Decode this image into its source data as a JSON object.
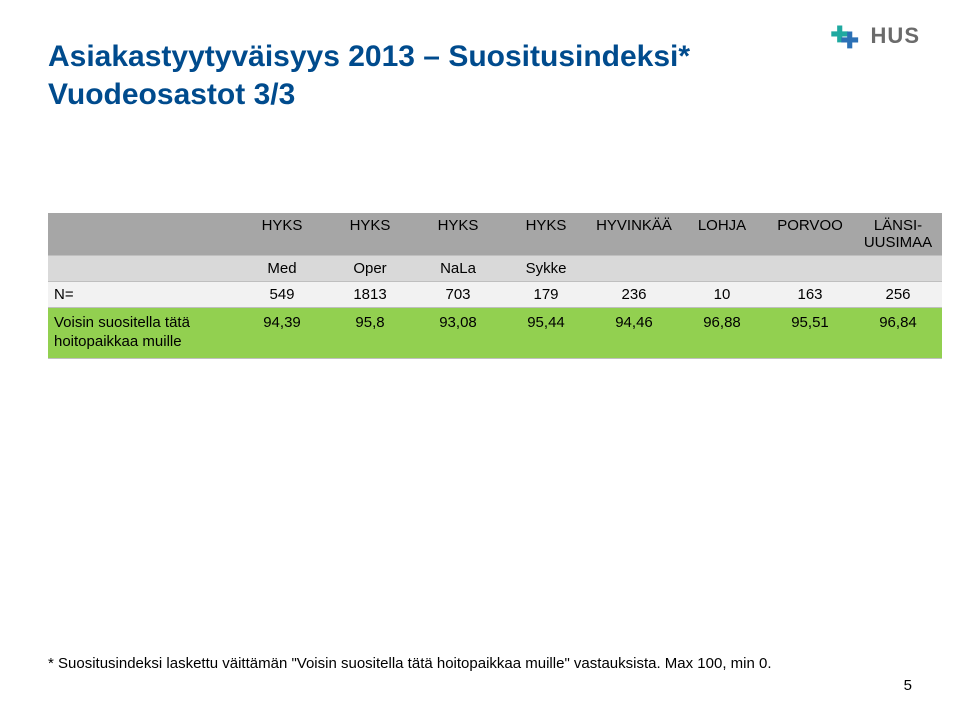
{
  "title": {
    "line1": "Asiakastyytyväisyys 2013 – Suositusindeksi*",
    "line2": "Vuodeosastot 3/3",
    "color": "#004b8d",
    "fontsize": 30
  },
  "logo": {
    "text": "HUS",
    "text_color": "#6b6b6b",
    "mark_color_1": "#1fa9a0",
    "mark_color_2": "#2b70b5"
  },
  "table": {
    "columns_main": [
      "HYKS",
      "HYKS",
      "HYKS",
      "HYKS",
      "HYVINKÄÄ",
      "LOHJA",
      "PORVOO",
      "LÄNSI-UUSIMAA"
    ],
    "columns_sub": [
      "Med",
      "Oper",
      "NaLa",
      "Sykke",
      "",
      "",
      "",
      ""
    ],
    "n_label": "N=",
    "n_values": [
      "549",
      "1813",
      "703",
      "179",
      "236",
      "10",
      "163",
      "256"
    ],
    "data_label": "Voisin suositella tätä hoitopaikkaa muille",
    "data_values": [
      "94,39",
      "95,8",
      "93,08",
      "95,44",
      "94,46",
      "96,88",
      "95,51",
      "96,84"
    ],
    "header_bg_main": "#a6a6a6",
    "header_bg_sub": "#d9d9d9",
    "row_n_bg": "#f2f2f2",
    "row_data_bg": "#92d050",
    "border_color": "#bfbfbf",
    "fontsize": 15
  },
  "footnote": "* Suositusindeksi laskettu väittämän \"Voisin suositella tätä hoitopaikkaa muille\" vastauksista. Max 100, min 0.",
  "page_number": "5"
}
